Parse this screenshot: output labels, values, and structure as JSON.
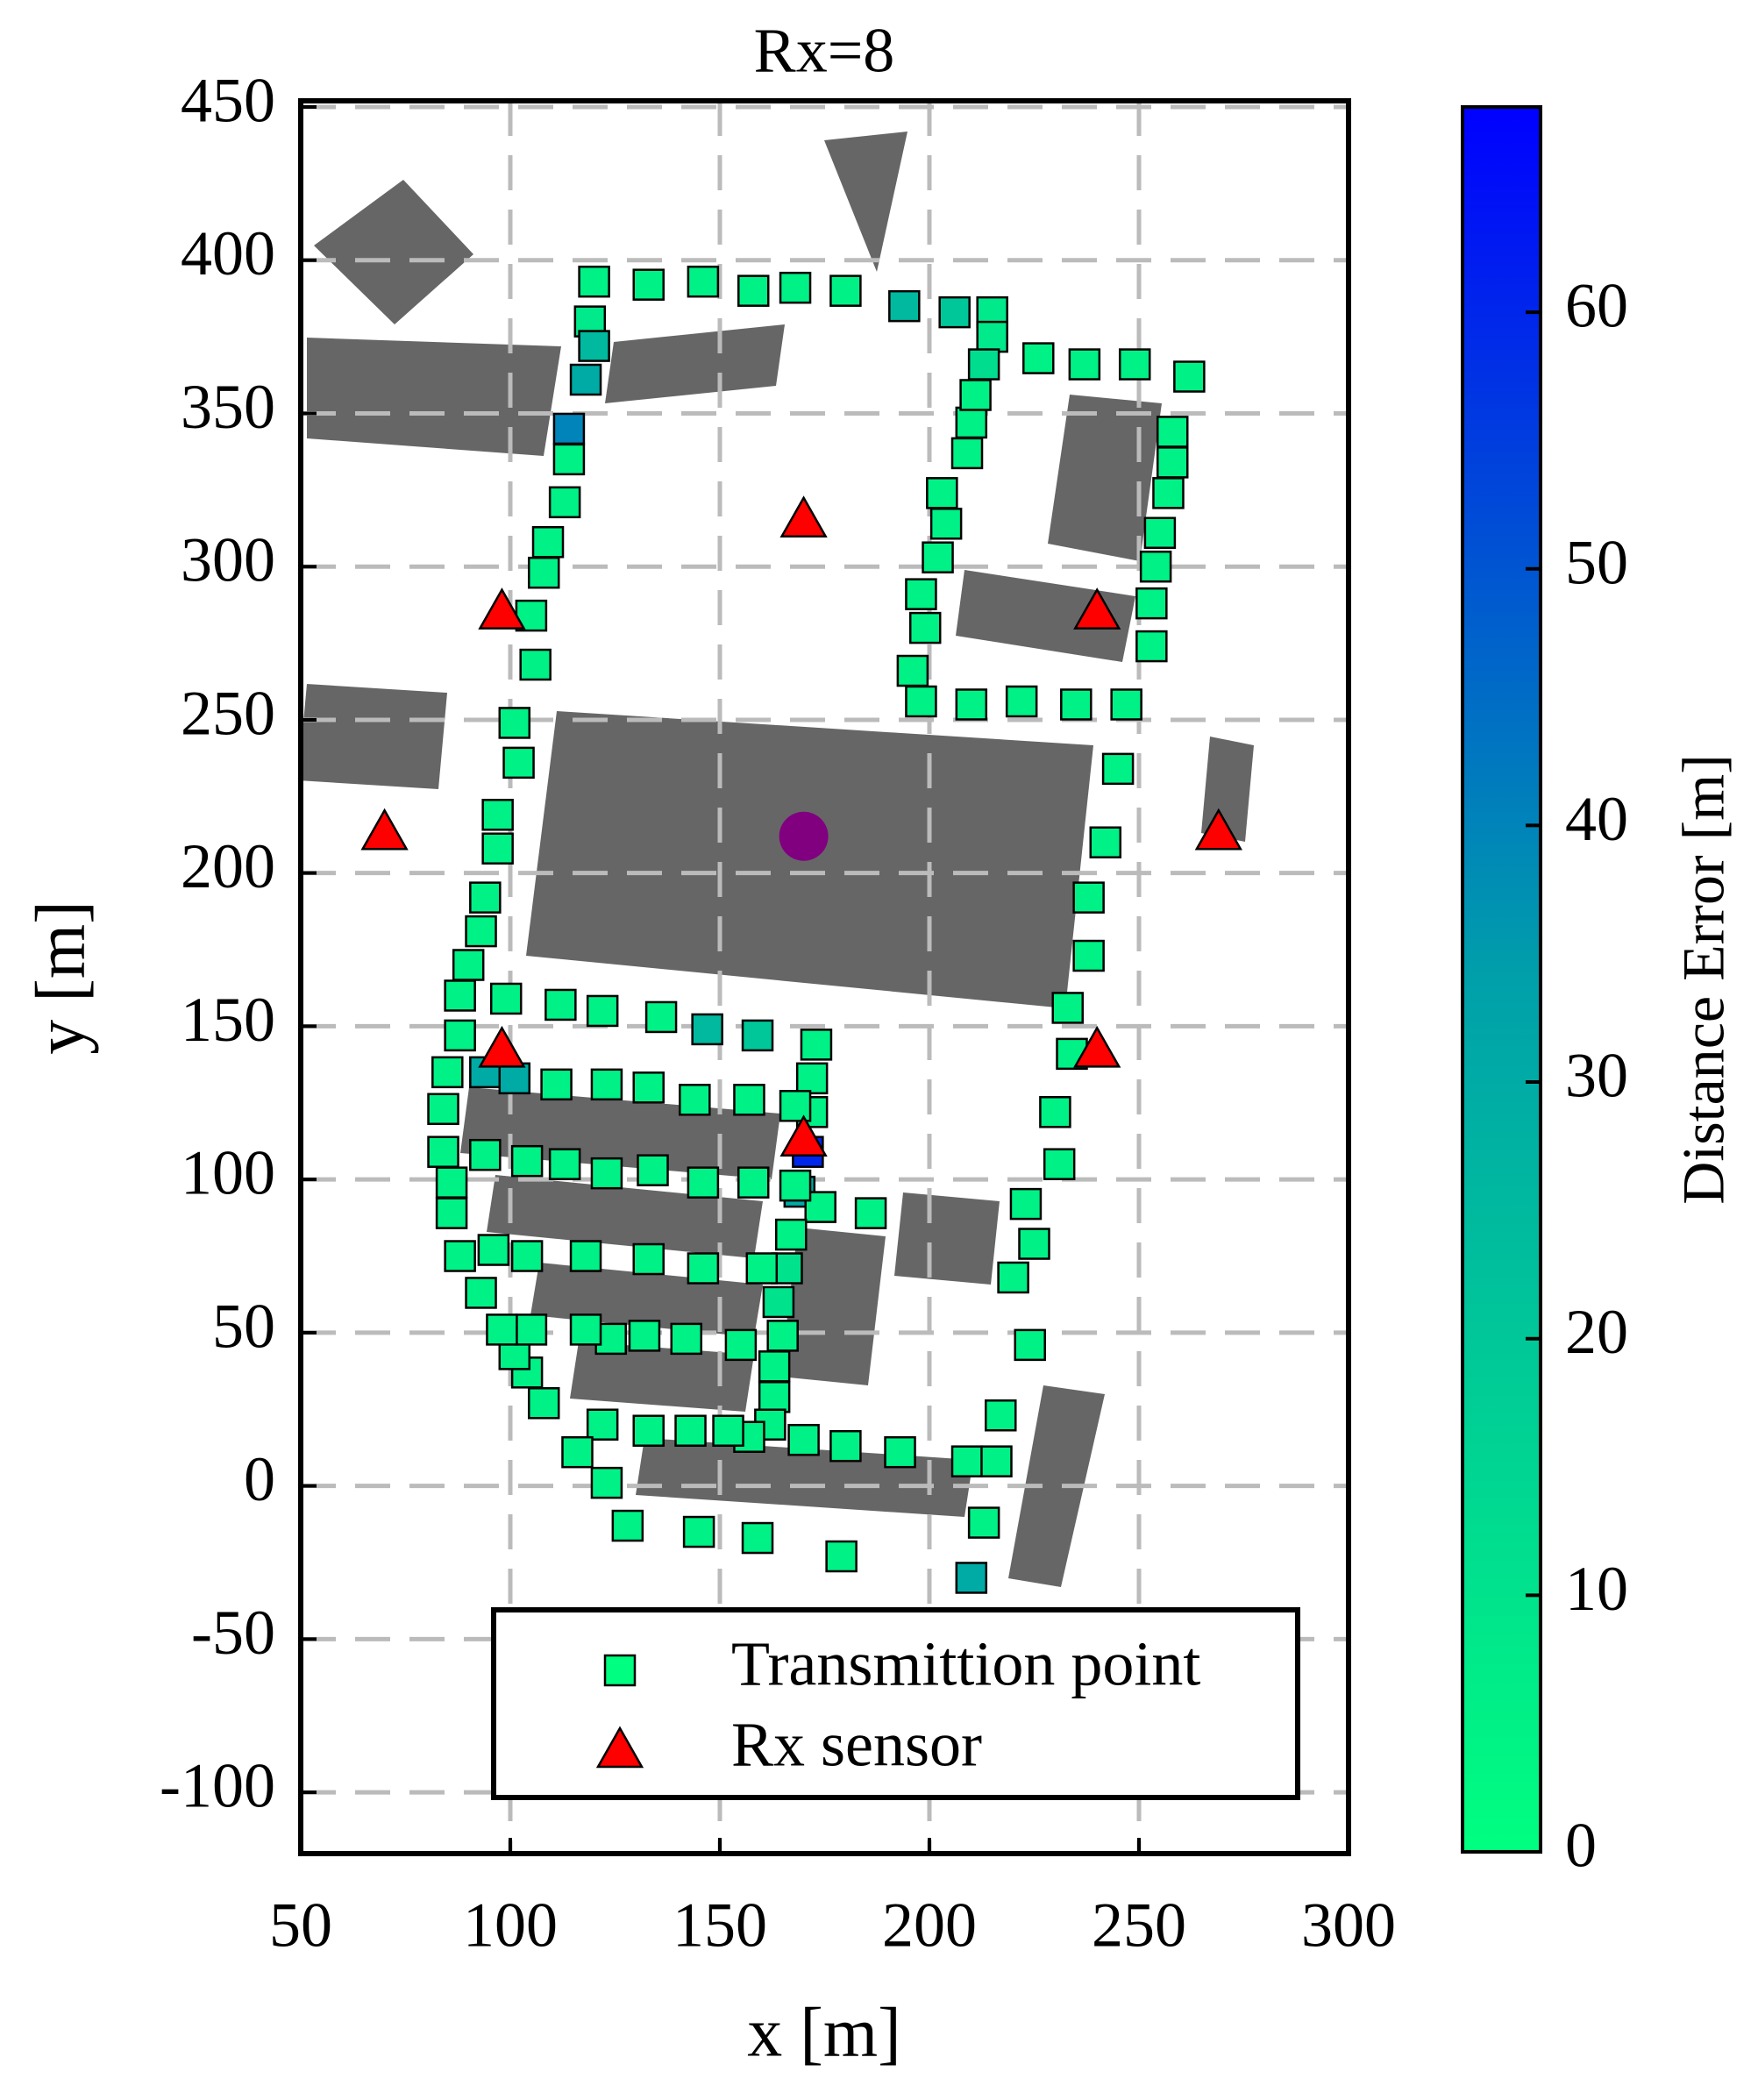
{
  "chart_data": {
    "type": "scatter",
    "title": "Rx=8",
    "x_label": "x [m]",
    "y_label": "y [m]",
    "xlim": [
      50,
      300
    ],
    "ylim": [
      -120,
      452
    ],
    "xticks": [
      50,
      100,
      150,
      200,
      250,
      300
    ],
    "yticks": [
      -100,
      -50,
      0,
      50,
      100,
      150,
      200,
      250,
      300,
      350,
      400,
      450
    ],
    "grid": true,
    "legend": "lower right",
    "colorbar": {
      "label": "Distance Error [m]",
      "clim": [
        0,
        68
      ],
      "ticks": [
        0,
        10,
        20,
        30,
        40,
        50,
        60
      ],
      "colormap": [
        "#00ff80",
        "#00a0aa",
        "#0000ff"
      ]
    },
    "series": [
      {
        "name": "Transmittion point",
        "marker": "square",
        "color": "#00ff80",
        "x": [
          120,
          133,
          146,
          158,
          168,
          180,
          194,
          206,
          215,
          215,
          213,
          226,
          237,
          249,
          262,
          258,
          258,
          257,
          255,
          254,
          253,
          253,
          247,
          235,
          222,
          210,
          198,
          196,
          199,
          198,
          202,
          204,
          203,
          209,
          210,
          211,
          119,
          120,
          118,
          114,
          114,
          113,
          109,
          108,
          105,
          106,
          101,
          102,
          97,
          97,
          94,
          93,
          90,
          88,
          88,
          85,
          84,
          84,
          86,
          86,
          88,
          93,
          96,
          94,
          94,
          101,
          99,
          112,
          122,
          136,
          147,
          159,
          173,
          172,
          172,
          168,
          157,
          144,
          133,
          123,
          111,
          171,
          169,
          174,
          186,
          168,
          158,
          146,
          134,
          123,
          113,
          104,
          167,
          166,
          164,
          165,
          163,
          163,
          162,
          157,
          152,
          143,
          133,
          122,
          123,
          116,
          108,
          104,
          101,
          105,
          98,
          104,
          118,
          133,
          146,
          160,
          142,
          132,
          124,
          118,
          155,
          128,
          145,
          159,
          179,
          210,
          213,
          209,
          216,
          217,
          224,
          220,
          225,
          223,
          231,
          230,
          234,
          233,
          238,
          238,
          242,
          245,
          170,
          180,
          193
        ],
        "y": [
          393,
          392,
          393,
          390,
          391,
          390,
          385,
          383,
          383,
          375,
          366,
          368,
          366,
          366,
          362,
          344,
          334,
          324,
          311,
          300,
          288,
          274,
          255,
          255,
          256,
          255,
          256,
          266,
          280,
          291,
          303,
          314,
          324,
          337,
          347,
          356,
          380,
          372,
          361,
          345,
          335,
          321,
          308,
          298,
          284,
          268,
          249,
          236,
          219,
          208,
          192,
          181,
          170,
          160,
          147,
          135,
          123,
          109,
          99,
          89,
          75,
          63,
          77,
          108,
          135,
          133,
          159,
          157,
          155,
          153,
          149,
          147,
          144,
          133,
          122,
          124,
          126,
          126,
          130,
          131,
          131,
          109,
          96,
          91,
          89,
          98,
          99,
          99,
          103,
          102,
          105,
          106,
          82,
          71,
          60,
          49,
          39,
          29,
          20,
          16,
          18,
          18,
          18,
          20,
          1,
          11,
          27,
          37,
          43,
          51,
          51,
          75,
          75,
          74,
          71,
          71,
          48,
          49,
          48,
          51,
          46,
          -13,
          -15,
          -17,
          -23,
          -30,
          -12,
          8,
          8,
          23,
          46,
          68,
          79,
          92,
          105,
          122,
          141,
          156,
          173,
          192,
          210,
          234,
          15,
          13,
          11
        ],
        "error": [
          5,
          5,
          5,
          5,
          5,
          5,
          25,
          20,
          8,
          8,
          12,
          5,
          5,
          5,
          5,
          5,
          5,
          5,
          5,
          5,
          5,
          5,
          5,
          5,
          5,
          5,
          5,
          5,
          5,
          5,
          5,
          5,
          5,
          5,
          5,
          5,
          8,
          25,
          30,
          40,
          5,
          5,
          5,
          5,
          5,
          5,
          5,
          5,
          5,
          5,
          5,
          5,
          5,
          5,
          5,
          5,
          5,
          5,
          5,
          5,
          5,
          5,
          5,
          5,
          30,
          30,
          5,
          5,
          5,
          5,
          25,
          20,
          5,
          5,
          5,
          5,
          5,
          5,
          5,
          5,
          5,
          60,
          30,
          5,
          5,
          5,
          5,
          5,
          5,
          5,
          5,
          5,
          5,
          10,
          10,
          5,
          5,
          5,
          5,
          5,
          5,
          5,
          5,
          5,
          5,
          5,
          5,
          5,
          5,
          5,
          5,
          5,
          5,
          5,
          5,
          5,
          5,
          5,
          5,
          5,
          5,
          5,
          5,
          5,
          5,
          30,
          5,
          5,
          5,
          5,
          5,
          5,
          5,
          5,
          5,
          5,
          5,
          5,
          5,
          5,
          5,
          5,
          5,
          5,
          5
        ]
      },
      {
        "name": "Rx sensor",
        "marker": "triangle",
        "color": "#ff0000",
        "x": [
          70,
          98,
          170,
          240,
          269,
          240,
          170,
          98
        ],
        "y": [
          213,
          285,
          315,
          285,
          213,
          142,
          113,
          142
        ]
      },
      {
        "marker": "circle",
        "color": "#800080",
        "x": [
          170
        ],
        "y": [
          212
        ]
      }
    ]
  }
}
